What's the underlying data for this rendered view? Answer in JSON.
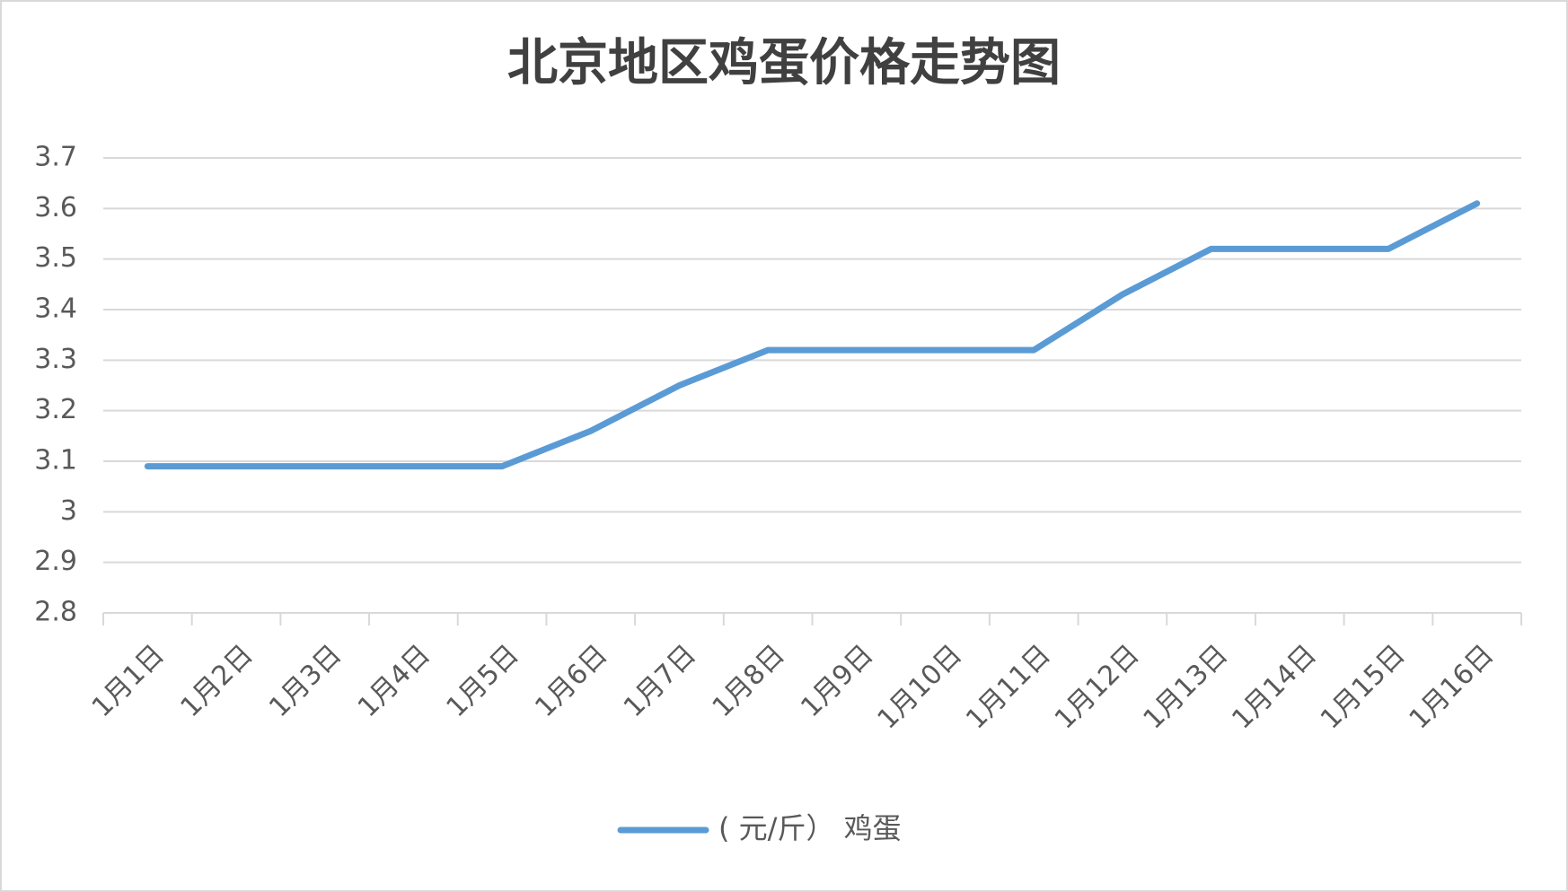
{
  "chart_data": {
    "type": "line",
    "title": "北京地区鸡蛋价格走势图",
    "categories": [
      "1月1日",
      "1月2日",
      "1月3日",
      "1月4日",
      "1月5日",
      "1月6日",
      "1月7日",
      "1月8日",
      "1月9日",
      "1月10日",
      "1月11日",
      "1月12日",
      "1月13日",
      "1月14日",
      "1月15日",
      "1月16日"
    ],
    "series": [
      {
        "name": "( 元/斤） 鸡蛋",
        "color": "#5b9bd5",
        "values": [
          3.09,
          3.09,
          3.09,
          3.09,
          3.09,
          3.16,
          3.25,
          3.32,
          3.32,
          3.32,
          3.32,
          3.43,
          3.52,
          3.52,
          3.52,
          3.61
        ]
      }
    ],
    "ylim": [
      2.8,
      3.7
    ],
    "yticks": [
      2.8,
      2.9,
      3,
      3.1,
      3.2,
      3.3,
      3.4,
      3.5,
      3.6,
      3.7
    ],
    "grid": true,
    "legend": "bottom"
  }
}
